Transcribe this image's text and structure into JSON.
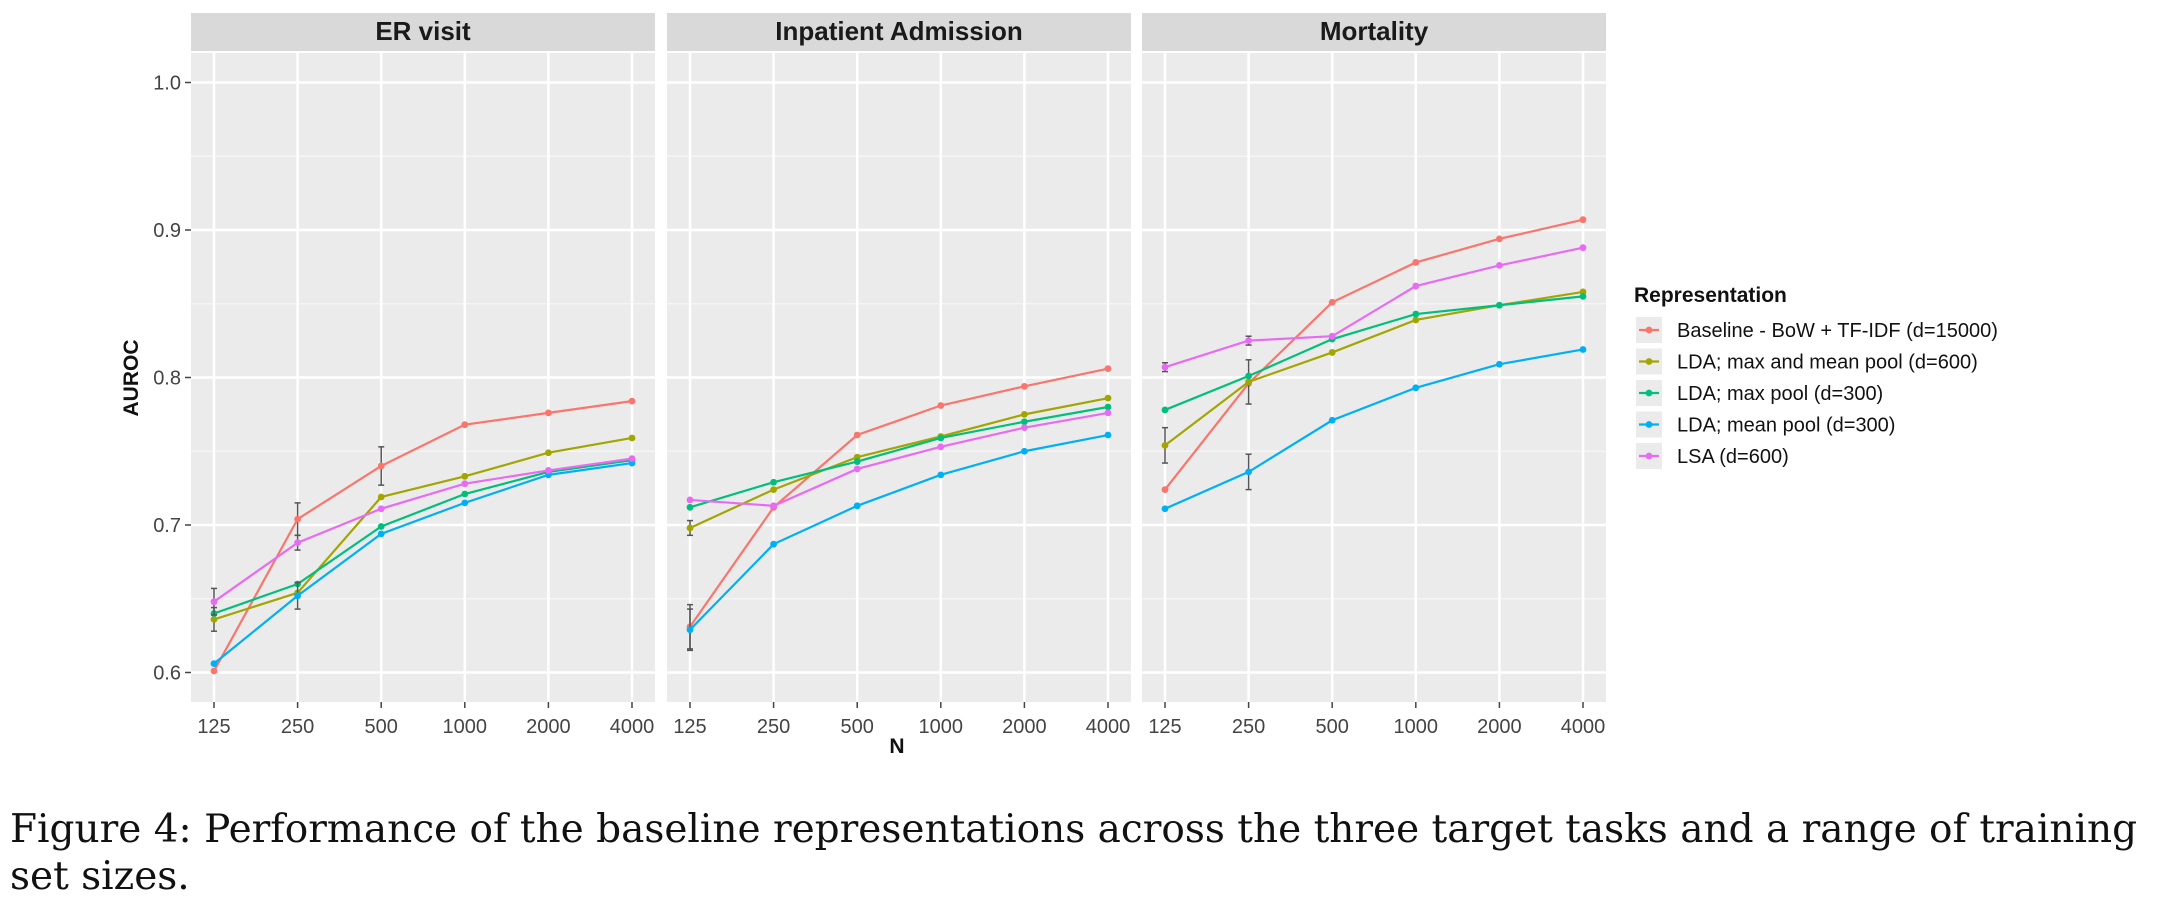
{
  "caption": "Figure 4: Performance of the baseline representations across the three target tasks and a range of training set sizes.",
  "chart_data": {
    "type": "line",
    "xlabel": "N",
    "ylabel": "AUROC",
    "x": [
      125,
      250,
      500,
      1000,
      2000,
      4000
    ],
    "x_tick_labels": [
      "125",
      "250",
      "500",
      "1000",
      "2000",
      "4000"
    ],
    "y_ticks": [
      "0.6",
      "0.7",
      "0.8",
      "0.9",
      "1.0"
    ],
    "ylim": [
      0.58,
      1.02
    ],
    "grid": true,
    "legend_title": "Representation",
    "legend_position": "right",
    "series_meta": [
      {
        "name": "Baseline - BoW + TF-IDF (d=15000)",
        "color": "#F8766D"
      },
      {
        "name": "LDA; max and mean pool (d=600)",
        "color": "#A3A500"
      },
      {
        "name": "LDA; max pool (d=300)",
        "color": "#00BF7D"
      },
      {
        "name": "LDA; mean pool (d=300)",
        "color": "#00B0F6"
      },
      {
        "name": "LSA (d=600)",
        "color": "#E76BF3"
      }
    ],
    "panels": [
      {
        "title": "ER visit",
        "series": [
          {
            "name": "Baseline - BoW + TF-IDF (d=15000)",
            "values": [
              0.601,
              0.704,
              0.74,
              0.768,
              0.776,
              0.784
            ],
            "errors": [
              0,
              0.011,
              0.013,
              0,
              0,
              0
            ]
          },
          {
            "name": "LDA; max and mean pool (d=600)",
            "values": [
              0.636,
              0.654,
              0.719,
              0.733,
              0.749,
              0.759
            ],
            "errors": [
              0.008,
              0,
              0,
              0,
              0,
              0
            ]
          },
          {
            "name": "LDA; max pool (d=300)",
            "values": [
              0.64,
              0.66,
              0.699,
              0.721,
              0.736,
              0.744
            ],
            "errors": [
              0,
              0,
              0,
              0,
              0,
              0
            ]
          },
          {
            "name": "LDA; mean pool (d=300)",
            "values": [
              0.606,
              0.652,
              0.694,
              0.715,
              0.734,
              0.742
            ],
            "errors": [
              0,
              0.009,
              0,
              0,
              0,
              0
            ]
          },
          {
            "name": "LSA (d=600)",
            "values": [
              0.648,
              0.688,
              0.711,
              0.728,
              0.737,
              0.745
            ],
            "errors": [
              0.009,
              0.005,
              0,
              0,
              0,
              0
            ]
          }
        ]
      },
      {
        "title": "Inpatient Admission",
        "series": [
          {
            "name": "Baseline - BoW + TF-IDF (d=15000)",
            "values": [
              0.631,
              0.712,
              0.761,
              0.781,
              0.794,
              0.806
            ],
            "errors": [
              0.015,
              0,
              0,
              0,
              0,
              0
            ]
          },
          {
            "name": "LDA; max and mean pool (d=600)",
            "values": [
              0.698,
              0.724,
              0.746,
              0.76,
              0.775,
              0.786
            ],
            "errors": [
              0.005,
              0,
              0,
              0,
              0,
              0
            ]
          },
          {
            "name": "LDA; max pool (d=300)",
            "values": [
              0.712,
              0.729,
              0.743,
              0.759,
              0.77,
              0.78
            ],
            "errors": [
              0,
              0,
              0,
              0,
              0,
              0
            ]
          },
          {
            "name": "LDA; mean pool (d=300)",
            "values": [
              0.629,
              0.687,
              0.713,
              0.734,
              0.75,
              0.761
            ],
            "errors": [
              0.014,
              0,
              0,
              0,
              0,
              0
            ]
          },
          {
            "name": "LSA (d=600)",
            "values": [
              0.717,
              0.713,
              0.738,
              0.753,
              0.766,
              0.776
            ],
            "errors": [
              0,
              0,
              0,
              0,
              0,
              0
            ]
          }
        ]
      },
      {
        "title": "Mortality",
        "series": [
          {
            "name": "Baseline - BoW + TF-IDF (d=15000)",
            "values": [
              0.724,
              0.796,
              0.851,
              0.878,
              0.894,
              0.907
            ],
            "errors": [
              0,
              0,
              0,
              0,
              0,
              0
            ]
          },
          {
            "name": "LDA; max and mean pool (d=600)",
            "values": [
              0.754,
              0.797,
              0.817,
              0.839,
              0.849,
              0.858
            ],
            "errors": [
              0.012,
              0.015,
              0,
              0,
              0,
              0
            ]
          },
          {
            "name": "LDA; max pool (d=300)",
            "values": [
              0.778,
              0.801,
              0.826,
              0.843,
              0.849,
              0.855
            ],
            "errors": [
              0,
              0,
              0,
              0,
              0,
              0
            ]
          },
          {
            "name": "LDA; mean pool (d=300)",
            "values": [
              0.711,
              0.736,
              0.771,
              0.793,
              0.809,
              0.819
            ],
            "errors": [
              0,
              0.012,
              0,
              0,
              0,
              0
            ]
          },
          {
            "name": "LSA (d=600)",
            "values": [
              0.807,
              0.825,
              0.828,
              0.862,
              0.876,
              0.888
            ],
            "errors": [
              0.003,
              0.003,
              0,
              0,
              0,
              0
            ]
          }
        ]
      }
    ]
  }
}
